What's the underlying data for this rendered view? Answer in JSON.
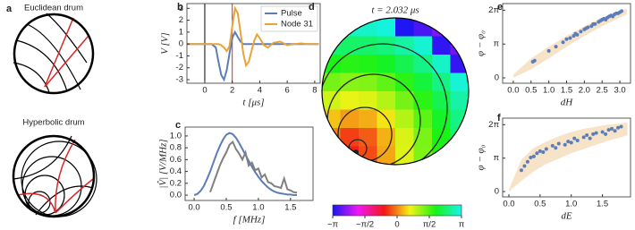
{
  "chart_data": [
    {
      "type": "diagram",
      "label": "a",
      "titles": [
        "Euclidean drum",
        "Hyperbolic drum"
      ]
    },
    {
      "type": "line",
      "label": "b",
      "xlabel": "t [μs]",
      "ylabel": "V [V]",
      "x": [
        -1.3,
        -1,
        -0.5,
        0,
        0.5,
        0.8,
        1.0,
        1.2,
        1.4,
        1.6,
        1.8,
        2.0,
        2.2,
        2.4,
        2.6,
        2.8,
        3.0,
        3.2,
        3.4,
        3.6,
        3.8,
        4.0,
        4.3,
        4.6,
        5,
        5.5,
        6,
        6.5,
        7,
        7.5,
        8,
        8.3
      ],
      "series": [
        {
          "name": "Pulse",
          "color": "#5b7db8",
          "values": [
            0,
            0,
            0,
            0,
            0,
            -0.3,
            -1.5,
            -2.6,
            -3.0,
            -2.2,
            -0.8,
            0.5,
            1.0,
            0.6,
            0.2,
            0,
            0,
            0,
            0,
            0,
            0,
            0,
            0,
            0,
            0,
            0,
            0,
            0,
            0,
            0,
            0,
            0
          ]
        },
        {
          "name": "Node 31",
          "color": "#e8a33a",
          "values": [
            0,
            0,
            0,
            0,
            0,
            0,
            0,
            -0.1,
            -0.3,
            -0.6,
            -0.2,
            1.5,
            3.0,
            2.6,
            1.0,
            -0.8,
            -1.8,
            -1.5,
            -0.6,
            0.3,
            0.8,
            0.5,
            -0.1,
            -0.3,
            0.1,
            0.2,
            -0.1,
            0,
            0.05,
            0,
            0,
            0
          ]
        }
      ],
      "vlines": [
        {
          "x": 0,
          "color": "#000000"
        },
        {
          "x": 2,
          "color": "#d62728"
        }
      ],
      "xlim": [
        -1.3,
        8.4
      ],
      "ylim": [
        -3.3,
        3.4
      ],
      "xticks": [
        0,
        2,
        4,
        6,
        8
      ],
      "yticks": [
        -3,
        -2,
        -1,
        0,
        1,
        2,
        3
      ],
      "legend": "top-right"
    },
    {
      "type": "line",
      "label": "c",
      "xlabel": "f [MHz]",
      "ylabel": "|V̂| [V/MHz]",
      "x": [
        0,
        0.05,
        0.1,
        0.15,
        0.2,
        0.25,
        0.3,
        0.35,
        0.4,
        0.45,
        0.5,
        0.55,
        0.6,
        0.65,
        0.7,
        0.75,
        0.8,
        0.85,
        0.9,
        0.95,
        1.0,
        1.05,
        1.1,
        1.15,
        1.2,
        1.25,
        1.3,
        1.35,
        1.4,
        1.45,
        1.5,
        1.55,
        1.6
      ],
      "series": [
        {
          "color": "#5b7db8",
          "values": [
            0.0,
            0.02,
            0.07,
            0.15,
            0.27,
            0.4,
            0.55,
            0.7,
            0.83,
            0.94,
            1.02,
            1.05,
            1.03,
            0.97,
            0.88,
            0.78,
            0.68,
            0.58,
            0.48,
            0.39,
            0.31,
            0.24,
            0.18,
            0.13,
            0.09,
            0.06,
            0.04,
            0.03,
            0.02,
            0.01,
            0.01,
            0.0,
            0.0
          ]
        },
        {
          "color": "#808080",
          "values": [
            null,
            null,
            null,
            null,
            null,
            0.05,
            0.2,
            0.35,
            0.5,
            0.62,
            0.72,
            0.85,
            0.9,
            0.78,
            0.7,
            0.6,
            0.72,
            0.5,
            0.55,
            0.42,
            0.45,
            0.3,
            0.35,
            0.22,
            0.2,
            0.15,
            0.14,
            0.12,
            0.28,
            0.1,
            0.08,
            0.05,
            0.04
          ]
        }
      ],
      "xlim": [
        -0.14,
        1.85
      ],
      "ylim": [
        -0.09,
        1.15
      ],
      "xticks": [
        {
          "value": 0,
          "label": "0.0"
        },
        0.5,
        {
          "value": 1,
          "label": "1.0"
        },
        1.5
      ],
      "yticks": [
        {
          "value": 0,
          "label": "0.0"
        },
        0.2,
        0.4,
        0.6,
        0.8,
        {
          "value": 1,
          "label": "1.0"
        }
      ]
    },
    {
      "type": "heatmap",
      "label": "d",
      "title": "t = 2.032 μs",
      "grid": [
        [
          null,
          2.89,
          2.91,
          3.01,
          -3.09,
          -2.85,
          -2.55,
          null
        ],
        [
          2.41,
          2.34,
          2.36,
          2.48,
          2.69,
          2.96,
          -2.99,
          -2.61
        ],
        [
          1.87,
          1.79,
          1.82,
          1.97,
          2.2,
          2.52,
          2.89,
          -2.98
        ],
        [
          1.34,
          1.24,
          1.28,
          1.46,
          1.75,
          2.11,
          2.52,
          2.98
        ],
        [
          0.83,
          0.69,
          0.75,
          0.98,
          1.33,
          1.75,
          2.22,
          2.71
        ],
        [
          0.35,
          0.14,
          0.23,
          0.55,
          0.99,
          1.48,
          1.99,
          2.51
        ],
        [
          -0.03,
          -0.4,
          -0.22,
          0.25,
          0.78,
          1.31,
          1.86,
          2.4
        ],
        [
          null,
          -0.59,
          -0.34,
          0.19,
          0.74,
          1.29,
          1.84,
          null
        ]
      ],
      "clim": [
        -3.1416,
        3.1416
      ],
      "cticks": [
        {
          "value": -3.1416,
          "label": "−π"
        },
        {
          "value": -1.5708,
          "label": "−π/2"
        },
        0,
        {
          "value": 1.5708,
          "label": "π/2"
        },
        {
          "value": 3.1416,
          "label": "π"
        }
      ]
    },
    {
      "type": "scatter",
      "label": "e",
      "xlabel": "dH",
      "ylabel": "φ − φ₀",
      "color": "#5b7db8",
      "x": [
        0.55,
        0.6,
        1.0,
        1.2,
        1.4,
        1.5,
        1.6,
        1.7,
        1.75,
        1.8,
        1.9,
        2.0,
        2.05,
        2.1,
        2.2,
        2.25,
        2.3,
        2.4,
        2.45,
        2.5,
        2.55,
        2.6,
        2.65,
        2.7,
        2.75,
        2.8,
        2.85,
        2.9,
        2.95,
        3.0,
        3.05
      ],
      "values": [
        1.5,
        1.6,
        2.5,
        2.9,
        3.3,
        3.6,
        3.7,
        3.9,
        4.1,
        4.0,
        4.3,
        4.5,
        4.6,
        4.7,
        4.8,
        5.0,
        5.0,
        5.2,
        5.3,
        5.4,
        5.5,
        5.4,
        5.6,
        5.7,
        5.8,
        5.7,
        5.9,
        6.0,
        6.0,
        6.1,
        6.2
      ],
      "band": {
        "color": "#f7e3c8",
        "x": [
          0,
          0.5,
          1,
          1.5,
          2,
          2.5,
          3,
          3.2
        ],
        "lower": [
          0,
          0.8,
          1.8,
          2.9,
          3.9,
          4.8,
          5.6,
          5.9
        ],
        "upper": [
          0.3,
          1.8,
          2.9,
          3.9,
          4.8,
          5.6,
          6.2,
          6.4
        ]
      },
      "xlim": [
        -0.3,
        3.3
      ],
      "ylim": [
        -0.5,
        6.9
      ],
      "xticks": [
        {
          "value": 0,
          "label": "0.0"
        },
        0.5,
        {
          "value": 1,
          "label": "1.0"
        },
        1.5,
        {
          "value": 2,
          "label": "2.0"
        },
        2.5,
        {
          "value": 3,
          "label": "3.0"
        }
      ],
      "yticks": [
        0,
        {
          "value": 3.1416,
          "label": "π"
        },
        {
          "value": 6.2832,
          "label": "2π"
        }
      ]
    },
    {
      "type": "scatter",
      "label": "f",
      "xlabel": "dE",
      "ylabel": "φ − φ₀",
      "color": "#5b7db8",
      "x": [
        0.2,
        0.25,
        0.3,
        0.35,
        0.4,
        0.45,
        0.5,
        0.55,
        0.6,
        0.7,
        0.75,
        0.8,
        0.9,
        0.95,
        1.0,
        1.05,
        1.1,
        1.2,
        1.25,
        1.3,
        1.35,
        1.4,
        1.5,
        1.55,
        1.6,
        1.65,
        1.7,
        1.75,
        1.8
      ],
      "values": [
        2.0,
        2.4,
        2.8,
        3.2,
        3.3,
        3.6,
        3.8,
        3.7,
        4.0,
        4.3,
        4.1,
        4.5,
        4.4,
        4.7,
        4.6,
        5.0,
        4.8,
        5.1,
        5.3,
        5.0,
        5.4,
        5.5,
        5.6,
        5.4,
        5.8,
        5.9,
        5.7,
        6.0,
        6.1
      ],
      "band": {
        "color": "#f7e3c8",
        "x": [
          0,
          0.2,
          0.4,
          0.6,
          0.8,
          1.0,
          1.2,
          1.4,
          1.6,
          1.8,
          1.9
        ],
        "lower": [
          0,
          1.0,
          1.9,
          2.6,
          3.1,
          3.6,
          4.0,
          4.4,
          4.8,
          5.1,
          5.3
        ],
        "upper": [
          0.2,
          3.0,
          4.1,
          4.7,
          5.2,
          5.6,
          5.9,
          6.1,
          6.3,
          6.4,
          6.5
        ]
      },
      "xlim": [
        -0.1,
        1.95
      ],
      "ylim": [
        -0.5,
        6.9
      ],
      "xticks": [
        {
          "value": 0,
          "label": "0.0"
        },
        0.5,
        {
          "value": 1,
          "label": "1.0"
        },
        1.5
      ],
      "yticks": [
        0,
        {
          "value": 3.1416,
          "label": "π"
        },
        {
          "value": 6.2832,
          "label": "2π"
        }
      ]
    }
  ]
}
